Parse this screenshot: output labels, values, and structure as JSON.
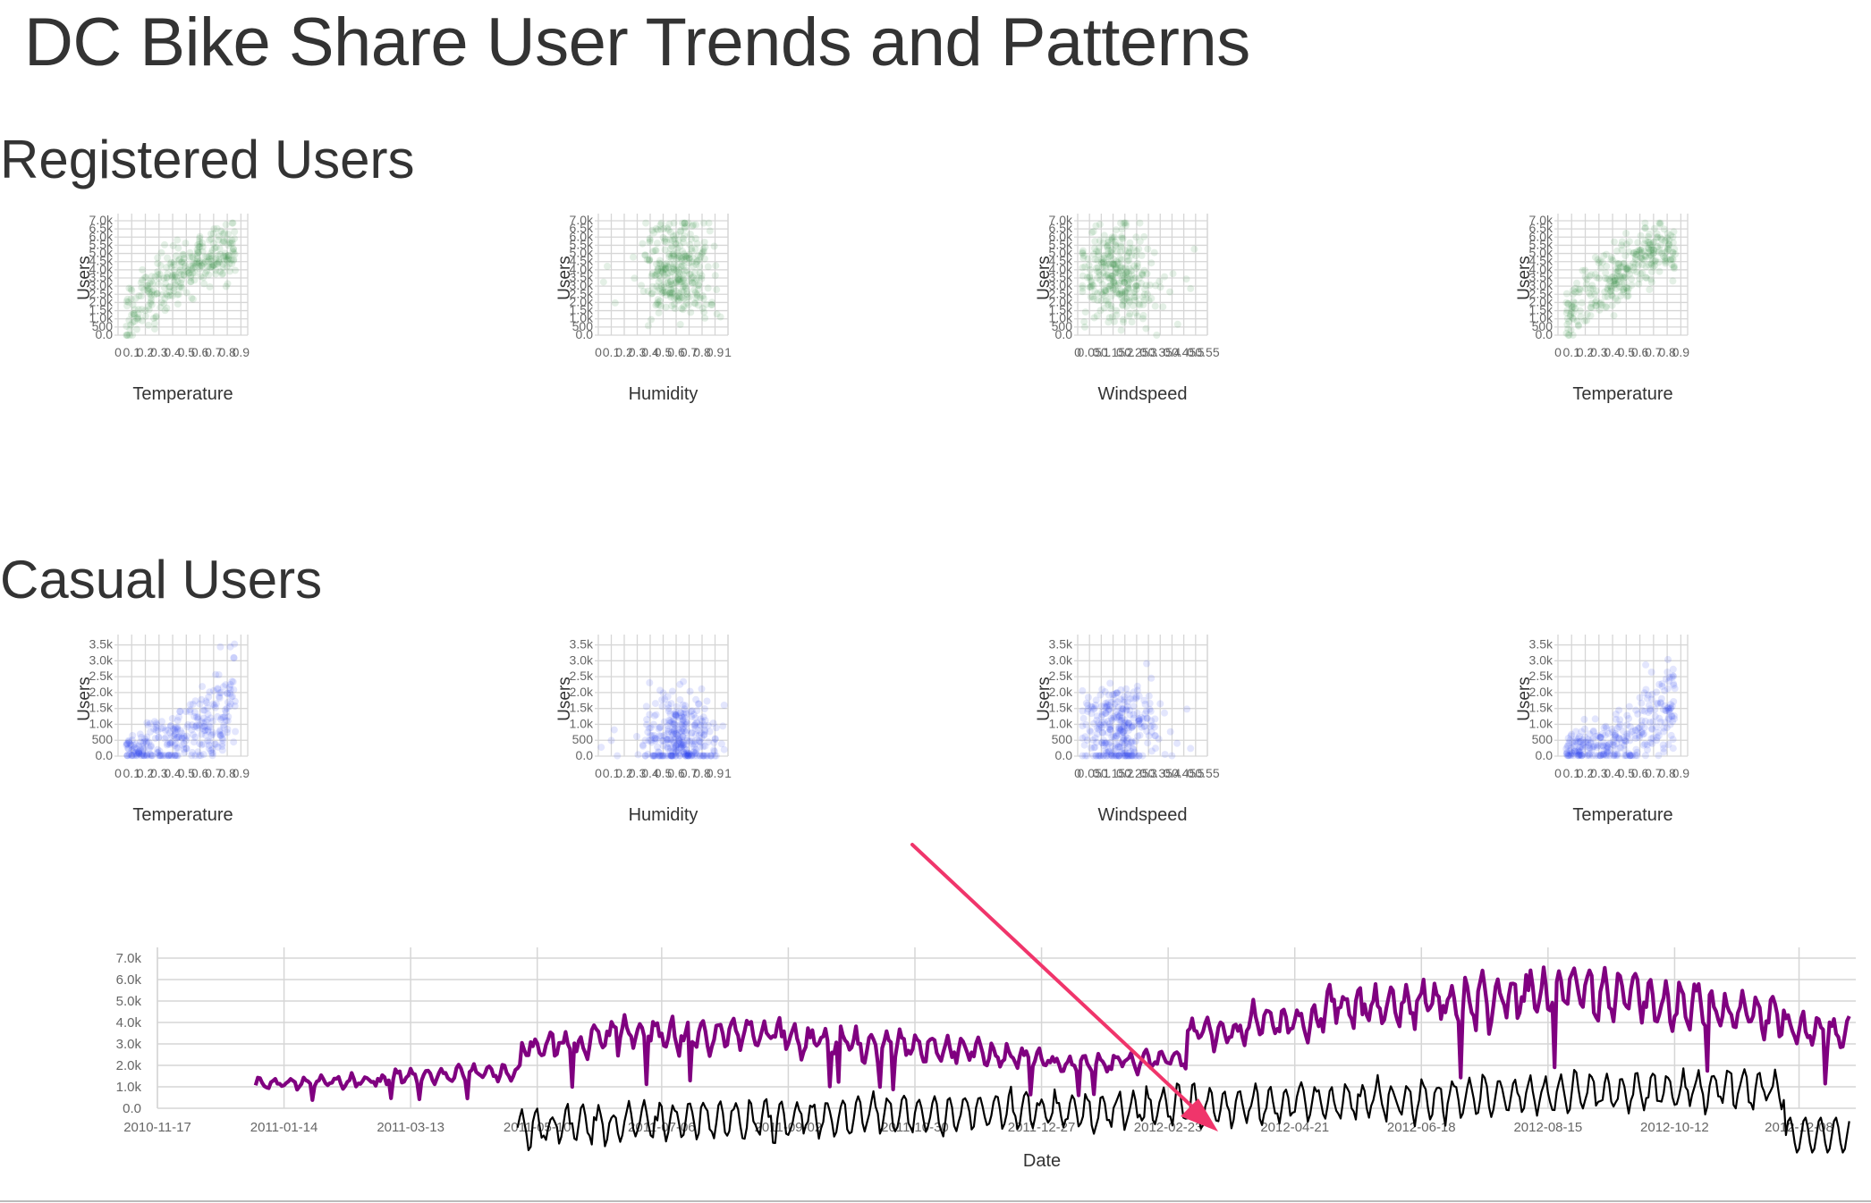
{
  "page_title": "DC Bike Share User Trends and Patterns",
  "sections": [
    {
      "key": "registered",
      "title": "Registered Users"
    },
    {
      "key": "casual",
      "title": "Casual Users"
    }
  ],
  "colors": {
    "registered_points": "#2e8b3e",
    "casual_points": "#2340f0",
    "timeline_line": "#800080",
    "secondary_line": "#000000",
    "annotation_arrow": "#f0356b",
    "grid": "#d6d6d6",
    "tick_text": "#666666"
  },
  "chart_data": [
    {
      "id": "reg-temp",
      "type": "scatter",
      "ylabel": "Users",
      "xlabel": "Temperature",
      "color": "#2e8b3e",
      "x_ticks": [
        "0",
        "0.1",
        "0.2",
        "0.3",
        "0.4",
        "0.5",
        "0.6",
        "0.7",
        "0.8",
        "0.9"
      ],
      "y_ticks": [
        "0.0",
        "500",
        "1.0k",
        "1.5k",
        "2.0k",
        "2.5k",
        "3.0k",
        "3.5k",
        "4.0k",
        "4.5k",
        "5.0k",
        "5.5k",
        "6.0k",
        "6.5k",
        "7.0k"
      ],
      "xlim": [
        0,
        0.95
      ],
      "ylim": [
        0,
        7000
      ],
      "x_tick_values": [
        0,
        0.1,
        0.2,
        0.3,
        0.4,
        0.5,
        0.6,
        0.7,
        0.8,
        0.9
      ],
      "y_tick_values": [
        0,
        500,
        1000,
        1500,
        2000,
        2500,
        3000,
        3500,
        4000,
        4500,
        5000,
        5500,
        6000,
        6500,
        7000
      ],
      "pattern": "temperature",
      "n_points": 731
    },
    {
      "id": "reg-hum",
      "type": "scatter",
      "ylabel": "Users",
      "xlabel": "Humidity",
      "color": "#2e8b3e",
      "x_ticks": [
        "0",
        "0.1",
        "0.2",
        "0.3",
        "0.4",
        "0.5",
        "0.6",
        "0.7",
        "0.8",
        "0.9",
        "1"
      ],
      "y_ticks": [
        "0.0",
        "500",
        "1.0k",
        "1.5k",
        "2.0k",
        "2.5k",
        "3.0k",
        "3.5k",
        "4.0k",
        "4.5k",
        "5.0k",
        "5.5k",
        "6.0k",
        "6.5k",
        "7.0k"
      ],
      "xlim": [
        0,
        1
      ],
      "ylim": [
        0,
        7000
      ],
      "x_tick_values": [
        0,
        0.1,
        0.2,
        0.3,
        0.4,
        0.5,
        0.6,
        0.7,
        0.8,
        0.9,
        1
      ],
      "y_tick_values": [
        0,
        500,
        1000,
        1500,
        2000,
        2500,
        3000,
        3500,
        4000,
        4500,
        5000,
        5500,
        6000,
        6500,
        7000
      ],
      "pattern": "humidity",
      "n_points": 731
    },
    {
      "id": "reg-wind",
      "type": "scatter",
      "ylabel": "Users",
      "xlabel": "Windspeed",
      "color": "#2e8b3e",
      "x_ticks": [
        "0",
        "0.05",
        "0.1",
        "0.15",
        "0.2",
        "0.25",
        "0.3",
        "0.35",
        "0.4",
        "0.45",
        "0.5",
        "0.55"
      ],
      "y_ticks": [
        "0.0",
        "500",
        "1.0k",
        "1.5k",
        "2.0k",
        "2.5k",
        "3.0k",
        "3.5k",
        "4.0k",
        "4.5k",
        "5.0k",
        "5.5k",
        "6.0k",
        "6.5k",
        "7.0k"
      ],
      "xlim": [
        0,
        0.55
      ],
      "ylim": [
        0,
        7000
      ],
      "x_tick_values": [
        0,
        0.05,
        0.1,
        0.15,
        0.2,
        0.25,
        0.3,
        0.35,
        0.4,
        0.45,
        0.5,
        0.55
      ],
      "y_tick_values": [
        0,
        500,
        1000,
        1500,
        2000,
        2500,
        3000,
        3500,
        4000,
        4500,
        5000,
        5500,
        6000,
        6500,
        7000
      ],
      "pattern": "windspeed",
      "n_points": 731
    },
    {
      "id": "reg-temp2",
      "type": "scatter",
      "ylabel": "Users",
      "xlabel": "Temperature",
      "color": "#2e8b3e",
      "x_ticks": [
        "0",
        "0.1",
        "0.2",
        "0.3",
        "0.4",
        "0.5",
        "0.6",
        "0.7",
        "0.8",
        "0.9"
      ],
      "y_ticks": [
        "0.0",
        "500",
        "1.0k",
        "1.5k",
        "2.0k",
        "2.5k",
        "3.0k",
        "3.5k",
        "4.0k",
        "4.5k",
        "5.0k",
        "5.5k",
        "6.0k",
        "6.5k",
        "7.0k"
      ],
      "xlim": [
        0,
        0.95
      ],
      "ylim": [
        0,
        7000
      ],
      "x_tick_values": [
        0,
        0.1,
        0.2,
        0.3,
        0.4,
        0.5,
        0.6,
        0.7,
        0.8,
        0.9
      ],
      "y_tick_values": [
        0,
        500,
        1000,
        1500,
        2000,
        2500,
        3000,
        3500,
        4000,
        4500,
        5000,
        5500,
        6000,
        6500,
        7000
      ],
      "pattern": "temperature",
      "n_points": 731
    },
    {
      "id": "cas-temp",
      "type": "scatter",
      "ylabel": "Users",
      "xlabel": "Temperature",
      "color": "#2340f0",
      "x_ticks": [
        "0",
        "0.1",
        "0.2",
        "0.3",
        "0.4",
        "0.5",
        "0.6",
        "0.7",
        "0.8",
        "0.9"
      ],
      "y_ticks": [
        "0.0",
        "500",
        "1.0k",
        "1.5k",
        "2.0k",
        "2.5k",
        "3.0k",
        "3.5k"
      ],
      "xlim": [
        0,
        0.95
      ],
      "ylim": [
        0,
        3600
      ],
      "x_tick_values": [
        0,
        0.1,
        0.2,
        0.3,
        0.4,
        0.5,
        0.6,
        0.7,
        0.8,
        0.9
      ],
      "y_tick_values": [
        0,
        500,
        1000,
        1500,
        2000,
        2500,
        3000,
        3500
      ],
      "pattern": "temperature",
      "n_points": 731
    },
    {
      "id": "cas-hum",
      "type": "scatter",
      "ylabel": "Users",
      "xlabel": "Humidity",
      "color": "#2340f0",
      "x_ticks": [
        "0",
        "0.1",
        "0.2",
        "0.3",
        "0.4",
        "0.5",
        "0.6",
        "0.7",
        "0.8",
        "0.9",
        "1"
      ],
      "y_ticks": [
        "0.0",
        "500",
        "1.0k",
        "1.5k",
        "2.0k",
        "2.5k",
        "3.0k",
        "3.5k"
      ],
      "xlim": [
        0,
        1
      ],
      "ylim": [
        0,
        3600
      ],
      "x_tick_values": [
        0,
        0.1,
        0.2,
        0.3,
        0.4,
        0.5,
        0.6,
        0.7,
        0.8,
        0.9,
        1
      ],
      "y_tick_values": [
        0,
        500,
        1000,
        1500,
        2000,
        2500,
        3000,
        3500
      ],
      "pattern": "humidity",
      "n_points": 731
    },
    {
      "id": "cas-wind",
      "type": "scatter",
      "ylabel": "Users",
      "xlabel": "Windspeed",
      "color": "#2340f0",
      "x_ticks": [
        "0",
        "0.05",
        "0.1",
        "0.15",
        "0.2",
        "0.25",
        "0.3",
        "0.35",
        "0.4",
        "0.45",
        "0.5",
        "0.55"
      ],
      "y_ticks": [
        "0.0",
        "500",
        "1.0k",
        "1.5k",
        "2.0k",
        "2.5k",
        "3.0k",
        "3.5k"
      ],
      "xlim": [
        0,
        0.55
      ],
      "ylim": [
        0,
        3600
      ],
      "x_tick_values": [
        0,
        0.05,
        0.1,
        0.15,
        0.2,
        0.25,
        0.3,
        0.35,
        0.4,
        0.45,
        0.5,
        0.55
      ],
      "y_tick_values": [
        0,
        500,
        1000,
        1500,
        2000,
        2500,
        3000,
        3500
      ],
      "pattern": "windspeed",
      "n_points": 731
    },
    {
      "id": "cas-temp2",
      "type": "scatter",
      "ylabel": "Users",
      "xlabel": "Temperature",
      "color": "#2340f0",
      "x_ticks": [
        "0",
        "0.1",
        "0.2",
        "0.3",
        "0.4",
        "0.5",
        "0.6",
        "0.7",
        "0.8",
        "0.9"
      ],
      "y_ticks": [
        "0.0",
        "500",
        "1.0k",
        "1.5k",
        "2.0k",
        "2.5k",
        "3.0k",
        "3.5k"
      ],
      "xlim": [
        0,
        0.95
      ],
      "ylim": [
        0,
        3600
      ],
      "x_tick_values": [
        0,
        0.1,
        0.2,
        0.3,
        0.4,
        0.5,
        0.6,
        0.7,
        0.8,
        0.9
      ],
      "y_tick_values": [
        0,
        500,
        1000,
        1500,
        2000,
        2500,
        3000,
        3500
      ],
      "pattern": "temperature",
      "n_points": 731
    },
    {
      "id": "timeline",
      "type": "line",
      "xlabel": "Date",
      "ylabel": "",
      "x_ticks": [
        "2010-11-17",
        "2011-01-14",
        "2011-03-13",
        "2011-05-10",
        "2011-07-06",
        "2011-09-02",
        "2011-10-30",
        "2011-12-27",
        "2012-02-23",
        "2012-04-21",
        "2012-06-18",
        "2012-08-15",
        "2012-10-12",
        "2012-12-08"
      ],
      "y_ticks": [
        "0.0",
        "1.0k",
        "2.0k",
        "3.0k",
        "4.0k",
        "5.0k",
        "6.0k",
        "7.0k"
      ],
      "ylim": [
        0,
        7500
      ],
      "xlim": [
        "2010-11-17",
        "2013-01-03"
      ],
      "series": [
        {
          "name": "",
          "color": "#800080",
          "start": "2011-01-01",
          "end": "2012-12-31",
          "monthly_level": [
            1300,
            1400,
            1700,
            1900,
            3200,
            3900,
            3800,
            3900,
            3600,
            3300,
            3100,
            2600,
            2300,
            2500,
            3900,
            4400,
            5300,
            5400,
            5600,
            6000,
            5900,
            5400,
            4900,
            4000
          ]
        },
        {
          "name": "",
          "color": "#000000",
          "start": "2011-05-01",
          "end": "2012-12-31",
          "partial": true
        }
      ]
    }
  ]
}
